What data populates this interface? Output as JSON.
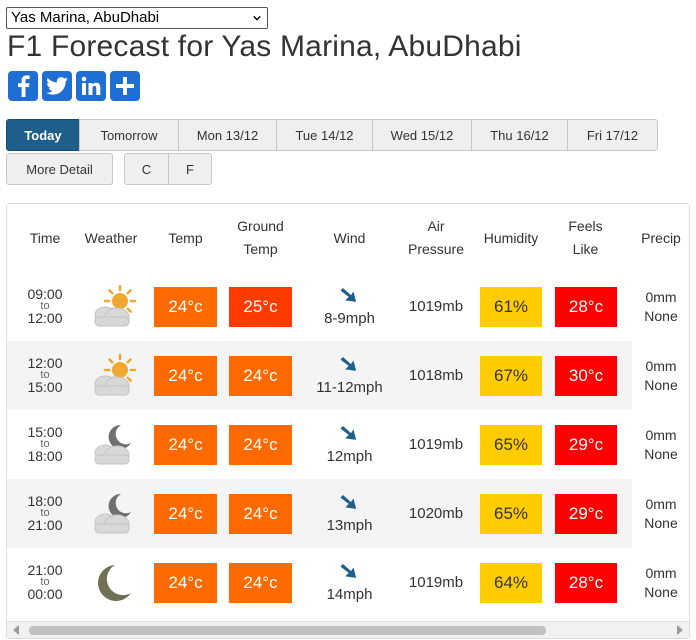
{
  "location_select": {
    "value": "Yas Marina, AbuDhabi"
  },
  "title": "F1 Forecast for Yas Marina, AbuDhabi",
  "share": [
    {
      "icon": "facebook-icon",
      "glyph": "f",
      "color": "#1f6ed4"
    },
    {
      "icon": "twitter-icon",
      "glyph": "t",
      "color": "#1f6ed4"
    },
    {
      "icon": "linkedin-icon",
      "glyph": "in",
      "color": "#1f6ed4"
    },
    {
      "icon": "share-plus-icon",
      "glyph": "+",
      "color": "#1f6ed4"
    }
  ],
  "day_tabs": [
    "Today",
    "Tomorrow",
    "Mon 13/12",
    "Tue 14/12",
    "Wed 15/12",
    "Thu 16/12",
    "Fri 17/12"
  ],
  "buttons": {
    "more_detail": "More Detail",
    "celsius": "C",
    "fahrenheit": "F"
  },
  "columns": {
    "time": "Time",
    "weather": "Weather",
    "temp": "Temp",
    "ground_temp": [
      "Ground",
      "Temp"
    ],
    "wind": "Wind",
    "air_pressure": [
      "Air",
      "Pressure"
    ],
    "humidity": "Humidity",
    "feels_like": [
      "Feels",
      "Like"
    ],
    "precip": "Precip"
  },
  "colors": {
    "active_tab": "#1d5f8a",
    "temp_orange": "#ff6a00",
    "temp_red_orange": "#ff3b00",
    "humidity_yellow": "#ffcc00",
    "feels_red": "#ff0000",
    "wind_arrow": "#1d5f8a"
  },
  "rows": [
    {
      "from": "09:00",
      "to_label": "to",
      "to": "12:00",
      "weather_icon": "sun-cloud-icon",
      "temp": "24°c",
      "temp_color": "#ff6a00",
      "ground": "25°c",
      "ground_color": "#ff3b00",
      "wind": "8-9mph",
      "wind_dir": "down-right",
      "pressure": "1019mb",
      "humidity": "61%",
      "feels": "28°c",
      "feels_color": "#ff0000",
      "precip_amount": "0mm",
      "precip_type": "None"
    },
    {
      "from": "12:00",
      "to_label": "to",
      "to": "15:00",
      "weather_icon": "sun-cloud-icon",
      "temp": "24°c",
      "temp_color": "#ff6a00",
      "ground": "24°c",
      "ground_color": "#ff6a00",
      "wind": "11-12mph",
      "wind_dir": "down-right",
      "pressure": "1018mb",
      "humidity": "67%",
      "feels": "30°c",
      "feels_color": "#ff0000",
      "precip_amount": "0mm",
      "precip_type": "None"
    },
    {
      "from": "15:00",
      "to_label": "to",
      "to": "18:00",
      "weather_icon": "moon-cloud-icon",
      "temp": "24°c",
      "temp_color": "#ff6a00",
      "ground": "24°c",
      "ground_color": "#ff6a00",
      "wind": "12mph",
      "wind_dir": "down-right",
      "pressure": "1019mb",
      "humidity": "65%",
      "feels": "29°c",
      "feels_color": "#ff0000",
      "precip_amount": "0mm",
      "precip_type": "None"
    },
    {
      "from": "18:00",
      "to_label": "to",
      "to": "21:00",
      "weather_icon": "moon-cloud-icon",
      "temp": "24°c",
      "temp_color": "#ff6a00",
      "ground": "24°c",
      "ground_color": "#ff6a00",
      "wind": "13mph",
      "wind_dir": "down-right",
      "pressure": "1020mb",
      "humidity": "65%",
      "feels": "29°c",
      "feels_color": "#ff0000",
      "precip_amount": "0mm",
      "precip_type": "None"
    },
    {
      "from": "21:00",
      "to_label": "to",
      "to": "00:00",
      "weather_icon": "moon-icon",
      "temp": "24°c",
      "temp_color": "#ff6a00",
      "ground": "24°c",
      "ground_color": "#ff6a00",
      "wind": "14mph",
      "wind_dir": "down-right",
      "pressure": "1019mb",
      "humidity": "64%",
      "feels": "28°c",
      "feels_color": "#ff0000",
      "precip_amount": "0mm",
      "precip_type": "None"
    }
  ]
}
